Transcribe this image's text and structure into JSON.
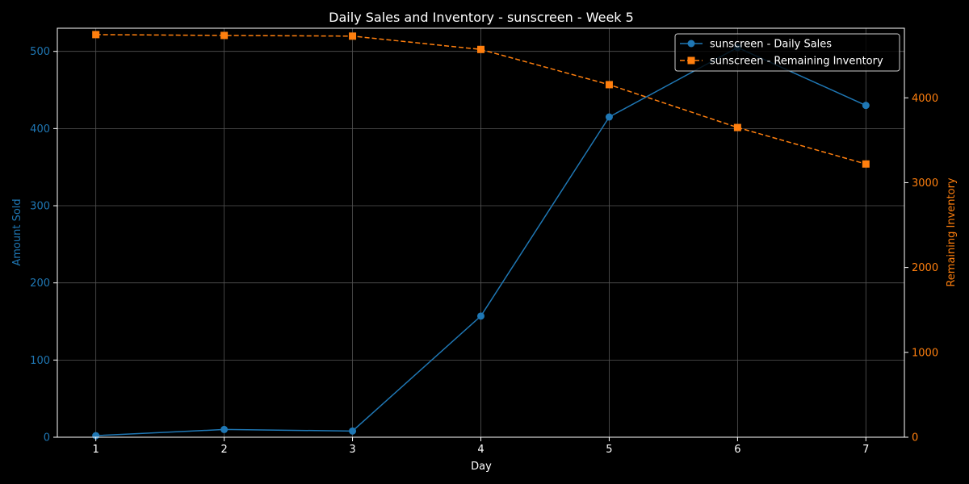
{
  "chart_data": {
    "type": "line",
    "title": "Daily Sales and Inventory - sunscreen - Week 5",
    "xlabel": "Day",
    "ylabel_left": "Amount Sold",
    "ylabel_right": "Remaining Inventory",
    "x": [
      1,
      2,
      3,
      4,
      5,
      6,
      7
    ],
    "xlim": [
      0.7,
      7.3
    ],
    "ylim_left": [
      0,
      530
    ],
    "ylim_right": [
      0,
      4820
    ],
    "xticks": [
      "1",
      "2",
      "3",
      "4",
      "5",
      "6",
      "7"
    ],
    "yticks_left": [
      "0",
      "100",
      "200",
      "300",
      "400",
      "500"
    ],
    "yticks_right": [
      "0",
      "1000",
      "2000",
      "3000",
      "4000"
    ],
    "grid": true,
    "legend_position": "top-right",
    "series": [
      {
        "name": "sunscreen - Daily Sales",
        "axis": "left",
        "values": [
          2,
          10,
          8,
          157,
          415,
          505,
          430
        ],
        "color": "#1f77b4",
        "line_style": "solid",
        "marker": "circle"
      },
      {
        "name": "sunscreen - Remaining Inventory",
        "axis": "right",
        "values": [
          4745,
          4735,
          4727,
          4570,
          4155,
          3650,
          3220
        ],
        "color": "#ff7f0e",
        "line_style": "dashed",
        "marker": "square"
      }
    ],
    "colors": {
      "background": "#000000",
      "axis": "#ffffff",
      "grid": "#555555"
    }
  }
}
